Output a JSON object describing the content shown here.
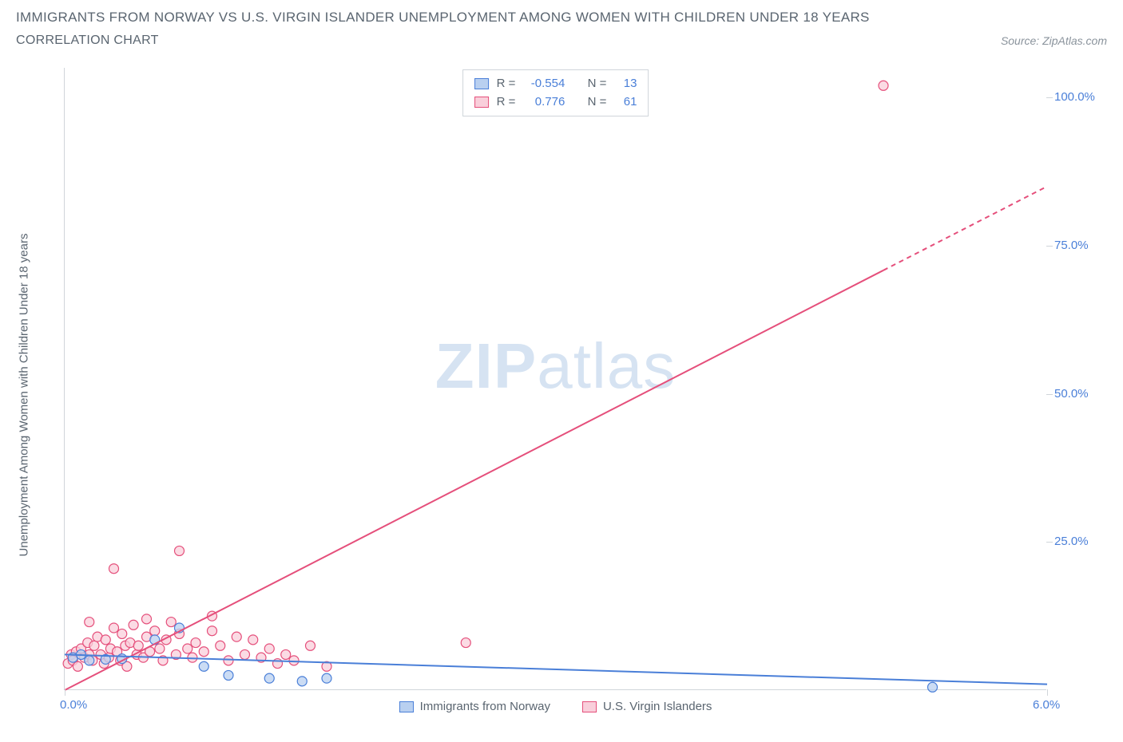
{
  "header": {
    "title": "IMMIGRANTS FROM NORWAY VS U.S. VIRGIN ISLANDER UNEMPLOYMENT AMONG WOMEN WITH CHILDREN UNDER 18 YEARS",
    "subtitle": "CORRELATION CHART",
    "source": "Source: ZipAtlas.com"
  },
  "watermark": {
    "part1": "ZIP",
    "part2": "atlas"
  },
  "chart": {
    "type": "scatter",
    "y_axis_label": "Unemployment Among Women with Children Under 18 years",
    "xlim": [
      0,
      6.0
    ],
    "ylim": [
      0,
      105
    ],
    "x_ticks": [
      {
        "value": 0.0,
        "label": "0.0%"
      },
      {
        "value": 6.0,
        "label": "6.0%"
      }
    ],
    "y_ticks": [
      {
        "value": 25,
        "label": "25.0%"
      },
      {
        "value": 50,
        "label": "50.0%"
      },
      {
        "value": 75,
        "label": "75.0%"
      },
      {
        "value": 100,
        "label": "100.0%"
      }
    ],
    "background_color": "#ffffff",
    "axis_color": "#d0d5da",
    "tick_label_color": "#4a7fd8",
    "marker_radius": 6,
    "marker_stroke_width": 1.2,
    "series": [
      {
        "key": "norway",
        "name": "Immigrants from Norway",
        "fill_color": "#b9d0f0",
        "stroke_color": "#4a7fd8",
        "r_label": "R =",
        "r_value": "-0.554",
        "n_label": "N =",
        "n_value": "13",
        "regression": {
          "x1": 0.0,
          "y1": 6.0,
          "x2": 6.0,
          "y2": 1.0,
          "dash_from_x": null
        },
        "points": [
          [
            0.05,
            5.5
          ],
          [
            0.1,
            6.0
          ],
          [
            0.15,
            5.0
          ],
          [
            0.25,
            5.2
          ],
          [
            0.35,
            5.3
          ],
          [
            0.55,
            8.5
          ],
          [
            0.7,
            10.5
          ],
          [
            0.85,
            4.0
          ],
          [
            1.0,
            2.5
          ],
          [
            1.25,
            2.0
          ],
          [
            1.45,
            1.5
          ],
          [
            1.6,
            2.0
          ],
          [
            5.3,
            0.5
          ]
        ]
      },
      {
        "key": "usvi",
        "name": "U.S. Virgin Islanders",
        "fill_color": "#f9cfdb",
        "stroke_color": "#e54f7b",
        "r_label": "R =",
        "r_value": "0.776",
        "n_label": "N =",
        "n_value": "61",
        "regression": {
          "x1": 0.0,
          "y1": 0.0,
          "x2": 6.0,
          "y2": 85.0,
          "dash_from_x": 5.0
        },
        "points": [
          [
            0.02,
            4.5
          ],
          [
            0.04,
            6.0
          ],
          [
            0.05,
            5.0
          ],
          [
            0.07,
            6.5
          ],
          [
            0.08,
            4.0
          ],
          [
            0.1,
            7.0
          ],
          [
            0.12,
            5.5
          ],
          [
            0.14,
            8.0
          ],
          [
            0.15,
            6.0
          ],
          [
            0.17,
            5.0
          ],
          [
            0.18,
            7.5
          ],
          [
            0.2,
            9.0
          ],
          [
            0.22,
            6.0
          ],
          [
            0.24,
            4.5
          ],
          [
            0.25,
            8.5
          ],
          [
            0.27,
            5.5
          ],
          [
            0.28,
            7.0
          ],
          [
            0.3,
            10.5
          ],
          [
            0.32,
            6.5
          ],
          [
            0.34,
            5.0
          ],
          [
            0.35,
            9.5
          ],
          [
            0.37,
            7.5
          ],
          [
            0.38,
            4.0
          ],
          [
            0.4,
            8.0
          ],
          [
            0.42,
            11.0
          ],
          [
            0.44,
            6.0
          ],
          [
            0.45,
            7.5
          ],
          [
            0.48,
            5.5
          ],
          [
            0.5,
            9.0
          ],
          [
            0.52,
            6.5
          ],
          [
            0.55,
            10.0
          ],
          [
            0.58,
            7.0
          ],
          [
            0.6,
            5.0
          ],
          [
            0.62,
            8.5
          ],
          [
            0.65,
            11.5
          ],
          [
            0.68,
            6.0
          ],
          [
            0.7,
            9.5
          ],
          [
            0.75,
            7.0
          ],
          [
            0.78,
            5.5
          ],
          [
            0.8,
            8.0
          ],
          [
            0.85,
            6.5
          ],
          [
            0.9,
            10.0
          ],
          [
            0.95,
            7.5
          ],
          [
            1.0,
            5.0
          ],
          [
            1.05,
            9.0
          ],
          [
            1.1,
            6.0
          ],
          [
            1.15,
            8.5
          ],
          [
            1.2,
            5.5
          ],
          [
            1.25,
            7.0
          ],
          [
            1.3,
            4.5
          ],
          [
            1.35,
            6.0
          ],
          [
            1.4,
            5.0
          ],
          [
            1.5,
            7.5
          ],
          [
            1.6,
            4.0
          ],
          [
            0.3,
            20.5
          ],
          [
            0.7,
            23.5
          ],
          [
            0.15,
            11.5
          ],
          [
            0.5,
            12.0
          ],
          [
            0.9,
            12.5
          ],
          [
            2.45,
            8.0
          ],
          [
            5.0,
            102.0
          ]
        ]
      }
    ],
    "legend_bottom": [
      {
        "series": "norway"
      },
      {
        "series": "usvi"
      }
    ]
  }
}
